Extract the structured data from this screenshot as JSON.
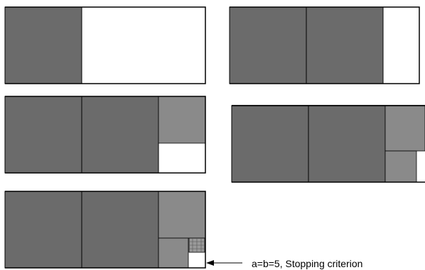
{
  "colors": {
    "dark_square": "#6b6b6b",
    "medium_square": "#8a8a8a",
    "tiny_square": "#9a9a9a",
    "frame": "#000000",
    "cell_border": "#000000",
    "empty": "#ffffff"
  },
  "annotation": {
    "label": "a=b=5, Stopping criterion"
  }
}
